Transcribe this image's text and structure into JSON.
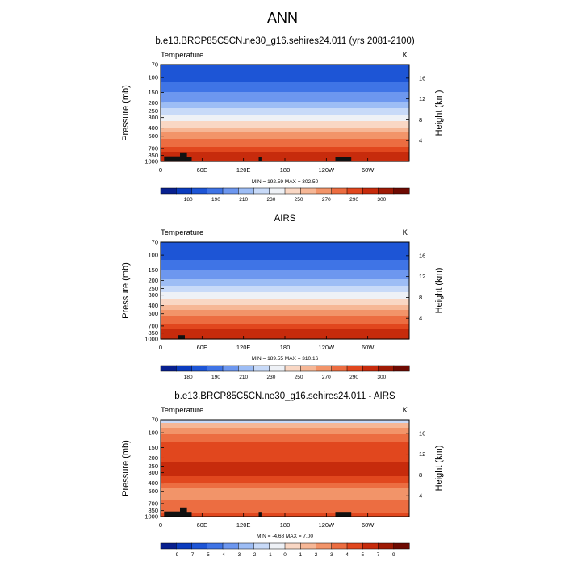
{
  "page": {
    "title": "ANN"
  },
  "colorscales": {
    "absolute": [
      "#08208f",
      "#0b3cbf",
      "#1d55d6",
      "#3f74e6",
      "#6d97ef",
      "#9dbdf5",
      "#c8daf8",
      "#eef1f6",
      "#f9d7c4",
      "#f6b796",
      "#f29469",
      "#ec6d41",
      "#e1471e",
      "#c72b0c",
      "#9f1a05",
      "#6e0a02"
    ],
    "difference": [
      "#08208f",
      "#0b3cbf",
      "#1d55d6",
      "#3f74e6",
      "#6d97ef",
      "#9dbdf5",
      "#c8daf8",
      "#eef1f6",
      "#f9d7c4",
      "#f6b796",
      "#f29469",
      "#ec6d41",
      "#e1471e",
      "#c72b0c",
      "#9f1a05",
      "#6e0a02"
    ]
  },
  "chart_data": [
    {
      "type": "heatmap",
      "title": "b.e13.BRCP85C5CN.ne30_g16.sehires24.011 (yrs 2081-2100)",
      "variable": "Temperature",
      "units": "K",
      "xlabel": "",
      "ylabel": "Pressure (mb)",
      "ylabel_right": "Height (km)",
      "x_ticks": [
        "0",
        "60E",
        "120E",
        "180",
        "120W",
        "60W"
      ],
      "x_tick_values": [
        0,
        60,
        120,
        180,
        240,
        300
      ],
      "xlim": [
        0,
        360
      ],
      "y_ticks": [
        "70",
        "100",
        "150",
        "200",
        "250",
        "300",
        "400",
        "500",
        "700",
        "850",
        "1000"
      ],
      "y_tick_values": [
        70,
        100,
        150,
        200,
        250,
        300,
        400,
        500,
        700,
        850,
        1000
      ],
      "ylim": [
        1000,
        70
      ],
      "y_scale": "log",
      "height_ticks": [
        "16",
        "12",
        "8",
        "4"
      ],
      "height_tick_values": [
        16,
        12,
        8,
        4
      ],
      "stats": "MIN = 192.59   MAX = 302.50",
      "colorbar_labels": [
        "180",
        "190",
        "210",
        "230",
        "250",
        "270",
        "290",
        "300"
      ],
      "colorscale": "absolute",
      "levels_by_pressure": [
        {
          "p": 70,
          "level": 2
        },
        {
          "p": 100,
          "level": 2
        },
        {
          "p": 130,
          "level": 3
        },
        {
          "p": 170,
          "level": 4
        },
        {
          "p": 215,
          "level": 5
        },
        {
          "p": 260,
          "level": 6
        },
        {
          "p": 300,
          "level": 7
        },
        {
          "p": 360,
          "level": 8
        },
        {
          "p": 420,
          "level": 9
        },
        {
          "p": 500,
          "level": 10
        },
        {
          "p": 600,
          "level": 11
        },
        {
          "p": 720,
          "level": 12
        },
        {
          "p": 850,
          "level": 13
        },
        {
          "p": 1000,
          "level": 13
        }
      ],
      "terrain": [
        [
          5,
          30,
          870
        ],
        [
          28,
          38,
          780
        ],
        [
          36,
          45,
          880
        ],
        [
          142,
          146,
          880
        ],
        [
          253,
          276,
          880
        ]
      ]
    },
    {
      "type": "heatmap",
      "title": "AIRS",
      "variable": "Temperature",
      "units": "K",
      "xlabel": "",
      "ylabel": "Pressure (mb)",
      "ylabel_right": "Height (km)",
      "x_ticks": [
        "0",
        "60E",
        "120E",
        "180",
        "120W",
        "60W"
      ],
      "x_tick_values": [
        0,
        60,
        120,
        180,
        240,
        300
      ],
      "xlim": [
        0,
        360
      ],
      "y_ticks": [
        "70",
        "100",
        "150",
        "200",
        "250",
        "300",
        "400",
        "500",
        "700",
        "850",
        "1000"
      ],
      "y_tick_values": [
        70,
        100,
        150,
        200,
        250,
        300,
        400,
        500,
        700,
        850,
        1000
      ],
      "ylim": [
        1000,
        70
      ],
      "y_scale": "log",
      "height_ticks": [
        "16",
        "12",
        "8",
        "4"
      ],
      "height_tick_values": [
        16,
        12,
        8,
        4
      ],
      "stats": "MIN = 189.55   MAX = 310.16",
      "colorbar_labels": [
        "180",
        "190",
        "210",
        "230",
        "250",
        "270",
        "290",
        "300"
      ],
      "colorscale": "absolute",
      "levels_by_pressure": [
        {
          "p": 70,
          "level": 2
        },
        {
          "p": 100,
          "level": 2
        },
        {
          "p": 130,
          "level": 3
        },
        {
          "p": 170,
          "level": 4
        },
        {
          "p": 215,
          "level": 5
        },
        {
          "p": 260,
          "level": 6
        },
        {
          "p": 300,
          "level": 7
        },
        {
          "p": 360,
          "level": 8
        },
        {
          "p": 420,
          "level": 9
        },
        {
          "p": 500,
          "level": 10
        },
        {
          "p": 600,
          "level": 11
        },
        {
          "p": 720,
          "level": 12
        },
        {
          "p": 850,
          "level": 13
        },
        {
          "p": 1000,
          "level": 13
        }
      ],
      "terrain": [
        [
          25,
          35,
          900
        ]
      ]
    },
    {
      "type": "heatmap",
      "title": "b.e13.BRCP85C5CN.ne30_g16.sehires24.011 - AIRS",
      "variable": "Temperature",
      "units": "K",
      "xlabel": "",
      "ylabel": "Pressure (mb)",
      "ylabel_right": "Height (km)",
      "x_ticks": [
        "0",
        "60E",
        "120E",
        "180",
        "120W",
        "60W"
      ],
      "x_tick_values": [
        0,
        60,
        120,
        180,
        240,
        300
      ],
      "xlim": [
        0,
        360
      ],
      "y_ticks": [
        "70",
        "100",
        "150",
        "200",
        "250",
        "300",
        "400",
        "500",
        "700",
        "850",
        "1000"
      ],
      "y_tick_values": [
        70,
        100,
        150,
        200,
        250,
        300,
        400,
        500,
        700,
        850,
        1000
      ],
      "ylim": [
        1000,
        70
      ],
      "y_scale": "log",
      "height_ticks": [
        "16",
        "12",
        "8",
        "4"
      ],
      "height_tick_values": [
        16,
        12,
        8,
        4
      ],
      "stats": "MIN =  -4.68   MAX =   7.00",
      "colorbar_labels": [
        "-9",
        "-7",
        "-5",
        "-4",
        "-3",
        "-2",
        "-1",
        "0",
        "1",
        "2",
        "3",
        "4",
        "5",
        "7",
        "9"
      ],
      "colorscale": "difference",
      "levels_by_pressure": [
        {
          "p": 70,
          "level": 6
        },
        {
          "p": 80,
          "level": 9
        },
        {
          "p": 95,
          "level": 10
        },
        {
          "p": 110,
          "level": 11
        },
        {
          "p": 150,
          "level": 12
        },
        {
          "p": 200,
          "level": 12
        },
        {
          "p": 250,
          "level": 13
        },
        {
          "p": 310,
          "level": 13
        },
        {
          "p": 360,
          "level": 12
        },
        {
          "p": 420,
          "level": 11
        },
        {
          "p": 500,
          "level": 10
        },
        {
          "p": 600,
          "level": 10
        },
        {
          "p": 700,
          "level": 11
        },
        {
          "p": 850,
          "level": 11
        },
        {
          "p": 1000,
          "level": 12
        }
      ],
      "terrain": [
        [
          5,
          30,
          870
        ],
        [
          28,
          38,
          780
        ],
        [
          36,
          45,
          880
        ],
        [
          142,
          146,
          880
        ],
        [
          253,
          276,
          880
        ]
      ]
    }
  ]
}
